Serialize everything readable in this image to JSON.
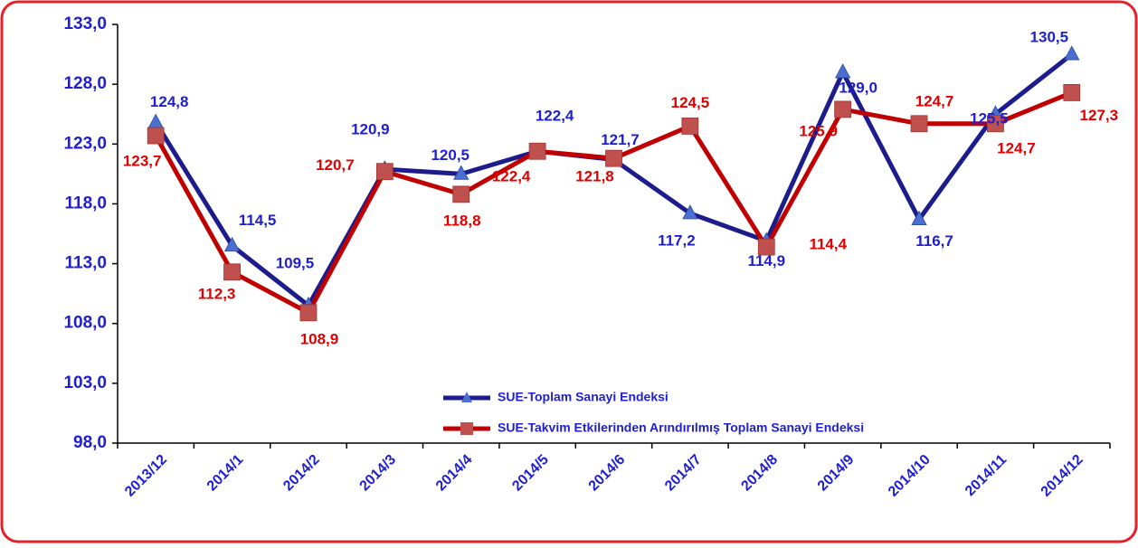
{
  "chart_data": {
    "type": "line",
    "categories": [
      "2013/12",
      "2014/1",
      "2014/2",
      "2014/3",
      "2014/4",
      "2014/5",
      "2014/6",
      "2014/7",
      "2014/8",
      "2014/9",
      "2014/10",
      "2014/11",
      "2014/12"
    ],
    "series": [
      {
        "name": "SUE-Toplam Sanayi Endeksi",
        "color": "#1c1c8c",
        "marker_color": "#4a6fd0",
        "marker": "triangle",
        "label_color": "#1f1fd0",
        "values": [
          124.8,
          114.5,
          109.5,
          120.9,
          120.5,
          122.4,
          121.7,
          117.2,
          114.9,
          129.0,
          116.7,
          125.5,
          130.5
        ],
        "value_labels": [
          "124,8",
          "114,5",
          "109,5",
          "120,9",
          "120,5",
          "122,4",
          "121,7",
          "117,2",
          "114,9",
          "129,0",
          "116,7",
          "125,5",
          "130,5"
        ]
      },
      {
        "name": "SUE-Takvim Etkilerinden Arındırılmış Toplam Sanayi Endeksi",
        "color": "#c00000",
        "marker_color": "#c0504d",
        "marker": "square",
        "label_color": "#e00000",
        "values": [
          123.7,
          112.3,
          108.9,
          120.7,
          118.8,
          122.4,
          121.8,
          124.5,
          114.4,
          125.9,
          124.7,
          124.7,
          127.3
        ],
        "value_labels": [
          "123,7",
          "112,3",
          "108,9",
          "120,7",
          "118,8",
          "122,4",
          "121,8",
          "124,5",
          "114,4",
          "125,9",
          "124,7",
          "124,7",
          "127,3"
        ]
      }
    ],
    "ylim": [
      98,
      133
    ],
    "yticks": [
      {
        "value": 98,
        "label": "98,0"
      },
      {
        "value": 103,
        "label": "103,0"
      },
      {
        "value": 108,
        "label": "108,0"
      },
      {
        "value": 113,
        "label": "113,0"
      },
      {
        "value": 118,
        "label": "118,0"
      },
      {
        "value": 123,
        "label": "123,0"
      },
      {
        "value": 128,
        "label": "128,0"
      },
      {
        "value": 133,
        "label": "133,0"
      }
    ],
    "grid": false
  }
}
